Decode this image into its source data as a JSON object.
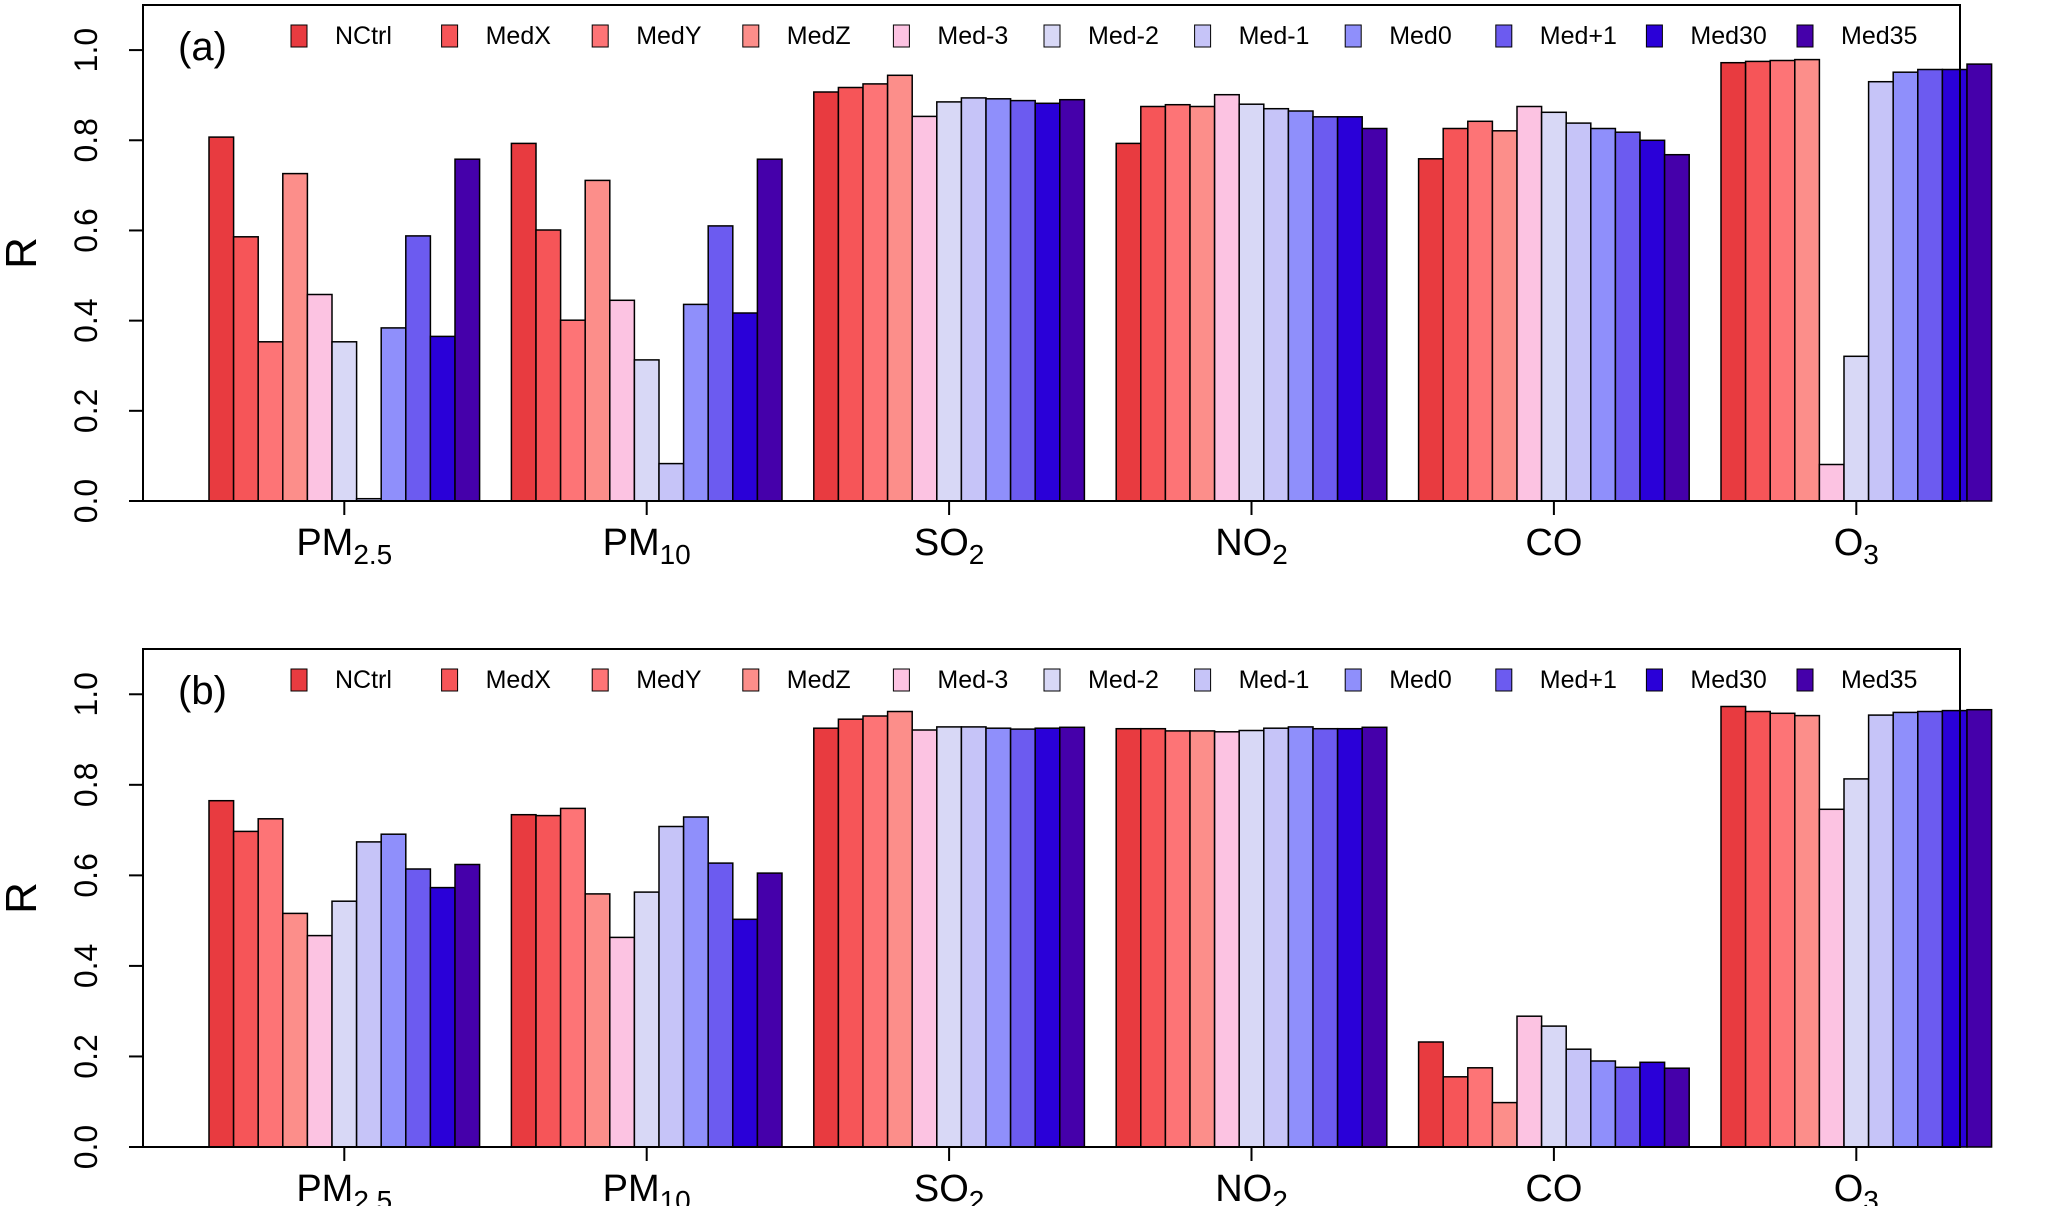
{
  "chart_data": {
    "type": "bar",
    "series_names": [
      "NCtrl",
      "MedX",
      "MedY",
      "MedZ",
      "Med-3",
      "Med-2",
      "Med-1",
      "Med0",
      "Med+1",
      "Med30",
      "Med35"
    ],
    "colors": [
      "#E83B40",
      "#F65558",
      "#FD7476",
      "#FC8E8A",
      "#FCC3E2",
      "#D8D8F6",
      "#C6C4F8",
      "#8F8FFB",
      "#6C5BF0",
      "#2A00D8",
      "#4500AA"
    ],
    "categories": [
      {
        "base": "PM",
        "sub": "2.5"
      },
      {
        "base": "PM",
        "sub": "10"
      },
      {
        "base": "SO",
        "sub": "2"
      },
      {
        "base": "NO",
        "sub": "2"
      },
      {
        "base": "CO",
        "sub": ""
      },
      {
        "base": "O",
        "sub": "3"
      }
    ],
    "ylabel": "R",
    "ylim": [
      0,
      1.1
    ],
    "yticks": [
      "0.0",
      "0.2",
      "0.4",
      "0.6",
      "0.8",
      "1.0"
    ],
    "panels": [
      {
        "label": "(a)",
        "values": [
          [
            0.807,
            0.586,
            0.353,
            0.726,
            0.458,
            0.353,
            0.005,
            0.384,
            0.588,
            0.365,
            0.758
          ],
          [
            0.793,
            0.601,
            0.401,
            0.711,
            0.445,
            0.313,
            0.083,
            0.436,
            0.61,
            0.417,
            0.758
          ],
          [
            0.907,
            0.917,
            0.925,
            0.944,
            0.853,
            0.885,
            0.894,
            0.892,
            0.888,
            0.882,
            0.89
          ],
          [
            0.793,
            0.875,
            0.879,
            0.875,
            0.901,
            0.88,
            0.87,
            0.865,
            0.852,
            0.852,
            0.826
          ],
          [
            0.759,
            0.826,
            0.842,
            0.821,
            0.875,
            0.862,
            0.838,
            0.826,
            0.818,
            0.8,
            0.768
          ],
          [
            0.972,
            0.975,
            0.977,
            0.979,
            0.081,
            0.321,
            0.93,
            0.951,
            0.957,
            0.957,
            0.969
          ]
        ]
      },
      {
        "label": "(b)",
        "values": [
          [
            0.765,
            0.697,
            0.725,
            0.516,
            0.467,
            0.543,
            0.674,
            0.691,
            0.614,
            0.573,
            0.624
          ],
          [
            0.734,
            0.732,
            0.748,
            0.559,
            0.463,
            0.563,
            0.708,
            0.729,
            0.627,
            0.503,
            0.605
          ],
          [
            0.925,
            0.945,
            0.952,
            0.962,
            0.921,
            0.928,
            0.928,
            0.925,
            0.923,
            0.925,
            0.927
          ],
          [
            0.924,
            0.924,
            0.919,
            0.919,
            0.917,
            0.92,
            0.925,
            0.928,
            0.924,
            0.924,
            0.927
          ],
          [
            0.232,
            0.155,
            0.175,
            0.098,
            0.289,
            0.267,
            0.216,
            0.19,
            0.176,
            0.187,
            0.174
          ],
          [
            0.973,
            0.962,
            0.958,
            0.953,
            0.746,
            0.813,
            0.954,
            0.96,
            0.962,
            0.964,
            0.966
          ]
        ]
      }
    ]
  }
}
